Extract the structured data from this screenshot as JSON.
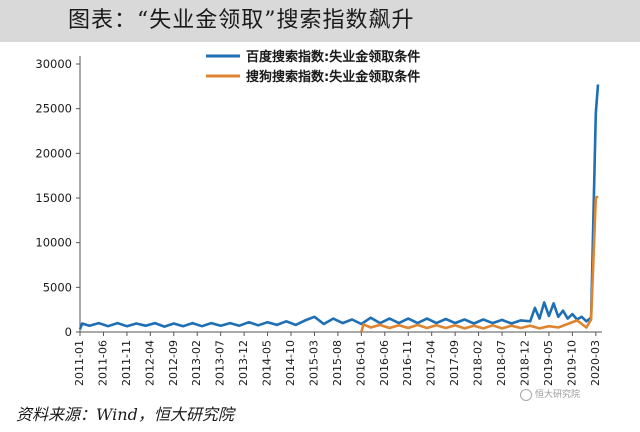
{
  "header": {
    "title": "图表：“失业金领取”搜索指数飙升"
  },
  "footer": {
    "source": "资料来源：Wind，恒大研究院"
  },
  "colors": {
    "baidu": "#1f6fb4",
    "sogou": "#df8430"
  },
  "chart_data": {
    "type": "line",
    "title": "图表：“失业金领取”搜索指数飙升",
    "xlabel": "",
    "ylabel": "",
    "ylim": [
      0,
      30000
    ],
    "yticks": [
      0,
      5000,
      10000,
      15000,
      20000,
      25000,
      30000
    ],
    "x_tick_labels": [
      "2011-01",
      "2011-06",
      "2011-11",
      "2012-04",
      "2012-09",
      "2013-02",
      "2013-07",
      "2013-12",
      "2014-05",
      "2014-10",
      "2015-03",
      "2015-08",
      "2016-01",
      "2016-06",
      "2016-11",
      "2017-04",
      "2017-09",
      "2018-02",
      "2018-07",
      "2018-12",
      "2019-05",
      "2019-10",
      "2020-03"
    ],
    "legend_position": "top-center",
    "grid": false,
    "series": [
      {
        "name": "百度搜索指数:失业金领取条件",
        "color": "#1f6fb4",
        "points": [
          [
            "2011-01",
            300
          ],
          [
            "2011-01-15",
            950
          ],
          [
            "2011-03",
            700
          ],
          [
            "2011-05",
            1000
          ],
          [
            "2011-07",
            650
          ],
          [
            "2011-09",
            1000
          ],
          [
            "2011-11",
            650
          ],
          [
            "2012-01",
            950
          ],
          [
            "2012-03",
            700
          ],
          [
            "2012-05",
            1000
          ],
          [
            "2012-07",
            600
          ],
          [
            "2012-09",
            950
          ],
          [
            "2012-11",
            650
          ],
          [
            "2013-01",
            1000
          ],
          [
            "2013-03",
            650
          ],
          [
            "2013-05",
            1000
          ],
          [
            "2013-07",
            700
          ],
          [
            "2013-09",
            1000
          ],
          [
            "2013-11",
            700
          ],
          [
            "2014-01",
            1100
          ],
          [
            "2014-03",
            750
          ],
          [
            "2014-05",
            1100
          ],
          [
            "2014-07",
            800
          ],
          [
            "2014-09",
            1200
          ],
          [
            "2014-11",
            800
          ],
          [
            "2015-01",
            1300
          ],
          [
            "2015-03",
            1700
          ],
          [
            "2015-05",
            900
          ],
          [
            "2015-07",
            1500
          ],
          [
            "2015-09",
            1000
          ],
          [
            "2015-11",
            1400
          ],
          [
            "2016-01",
            900
          ],
          [
            "2016-03",
            1600
          ],
          [
            "2016-05",
            1000
          ],
          [
            "2016-07",
            1500
          ],
          [
            "2016-09",
            1000
          ],
          [
            "2016-11",
            1500
          ],
          [
            "2017-01",
            1000
          ],
          [
            "2017-03",
            1500
          ],
          [
            "2017-05",
            1000
          ],
          [
            "2017-07",
            1450
          ],
          [
            "2017-09",
            1000
          ],
          [
            "2017-11",
            1400
          ],
          [
            "2018-01",
            950
          ],
          [
            "2018-03",
            1400
          ],
          [
            "2018-05",
            1000
          ],
          [
            "2018-07",
            1350
          ],
          [
            "2018-09",
            950
          ],
          [
            "2018-11",
            1300
          ],
          [
            "2019-01",
            1200
          ],
          [
            "2019-02",
            2700
          ],
          [
            "2019-03",
            1500
          ],
          [
            "2019-04",
            3300
          ],
          [
            "2019-05",
            1800
          ],
          [
            "2019-06",
            3200
          ],
          [
            "2019-07",
            1700
          ],
          [
            "2019-08",
            2400
          ],
          [
            "2019-09",
            1500
          ],
          [
            "2019-10",
            2000
          ],
          [
            "2019-11",
            1400
          ],
          [
            "2019-12",
            1700
          ],
          [
            "2020-01",
            1200
          ],
          [
            "2020-02",
            1600
          ],
          [
            "2020-03",
            24500
          ],
          [
            "2020-03-15",
            27700
          ]
        ]
      },
      {
        "name": "搜狗搜索指数:失业金领取条件",
        "color": "#df8430",
        "points": [
          [
            "2016-01",
            0
          ],
          [
            "2016-01-15",
            850
          ],
          [
            "2016-03",
            500
          ],
          [
            "2016-05",
            800
          ],
          [
            "2016-07",
            450
          ],
          [
            "2016-09",
            750
          ],
          [
            "2016-11",
            450
          ],
          [
            "2017-01",
            800
          ],
          [
            "2017-03",
            450
          ],
          [
            "2017-05",
            750
          ],
          [
            "2017-07",
            450
          ],
          [
            "2017-09",
            750
          ],
          [
            "2017-11",
            400
          ],
          [
            "2018-01",
            700
          ],
          [
            "2018-03",
            400
          ],
          [
            "2018-05",
            750
          ],
          [
            "2018-07",
            400
          ],
          [
            "2018-09",
            700
          ],
          [
            "2018-11",
            450
          ],
          [
            "2019-01",
            700
          ],
          [
            "2019-03",
            400
          ],
          [
            "2019-05",
            650
          ],
          [
            "2019-07",
            500
          ],
          [
            "2019-09",
            900
          ],
          [
            "2019-11",
            1300
          ],
          [
            "2020-01",
            500
          ],
          [
            "2020-02",
            1400
          ],
          [
            "2020-03",
            15000
          ],
          [
            "2020-03-15",
            15200
          ]
        ]
      }
    ]
  },
  "watermark": {
    "text": "恒大研究院"
  }
}
